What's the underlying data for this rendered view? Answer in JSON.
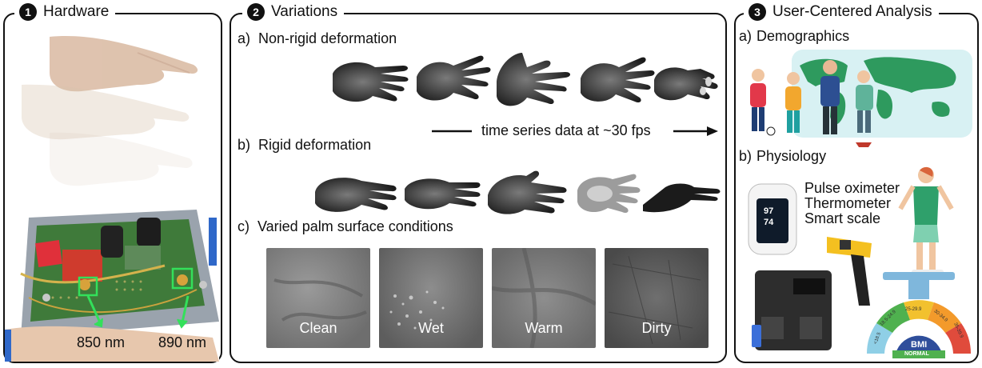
{
  "panel1": {
    "number": "1",
    "title": "Hardware",
    "wavelength_left": "850 nm",
    "wavelength_right": "890 nm"
  },
  "panel2": {
    "number": "2",
    "title": "Variations",
    "a_letter": "a)",
    "a_label": "Non-rigid deformation",
    "time_label": "time series data at ~30 fps",
    "b_letter": "b)",
    "b_label": "Rigid deformation",
    "c_letter": "c)",
    "c_label": "Varied palm surface conditions",
    "conditions": [
      "Clean",
      "Wet",
      "Warm",
      "Dirty"
    ]
  },
  "panel3": {
    "number": "3",
    "title": "User-Centered Analysis",
    "a_letter": "a)",
    "a_label": "Demographics",
    "b_letter": "b)",
    "b_label": "Physiology",
    "devices": [
      "Pulse oximeter",
      "Thermometer",
      "Smart scale"
    ],
    "oximeter_value1": "97",
    "oximeter_value2": "74",
    "bmi_label": "BMI",
    "bmi_status": "NORMAL",
    "bmi_ticks": [
      "<18.5",
      "18.5-24.9",
      "25-29.9",
      "30-34.9",
      "35-39.9"
    ]
  }
}
